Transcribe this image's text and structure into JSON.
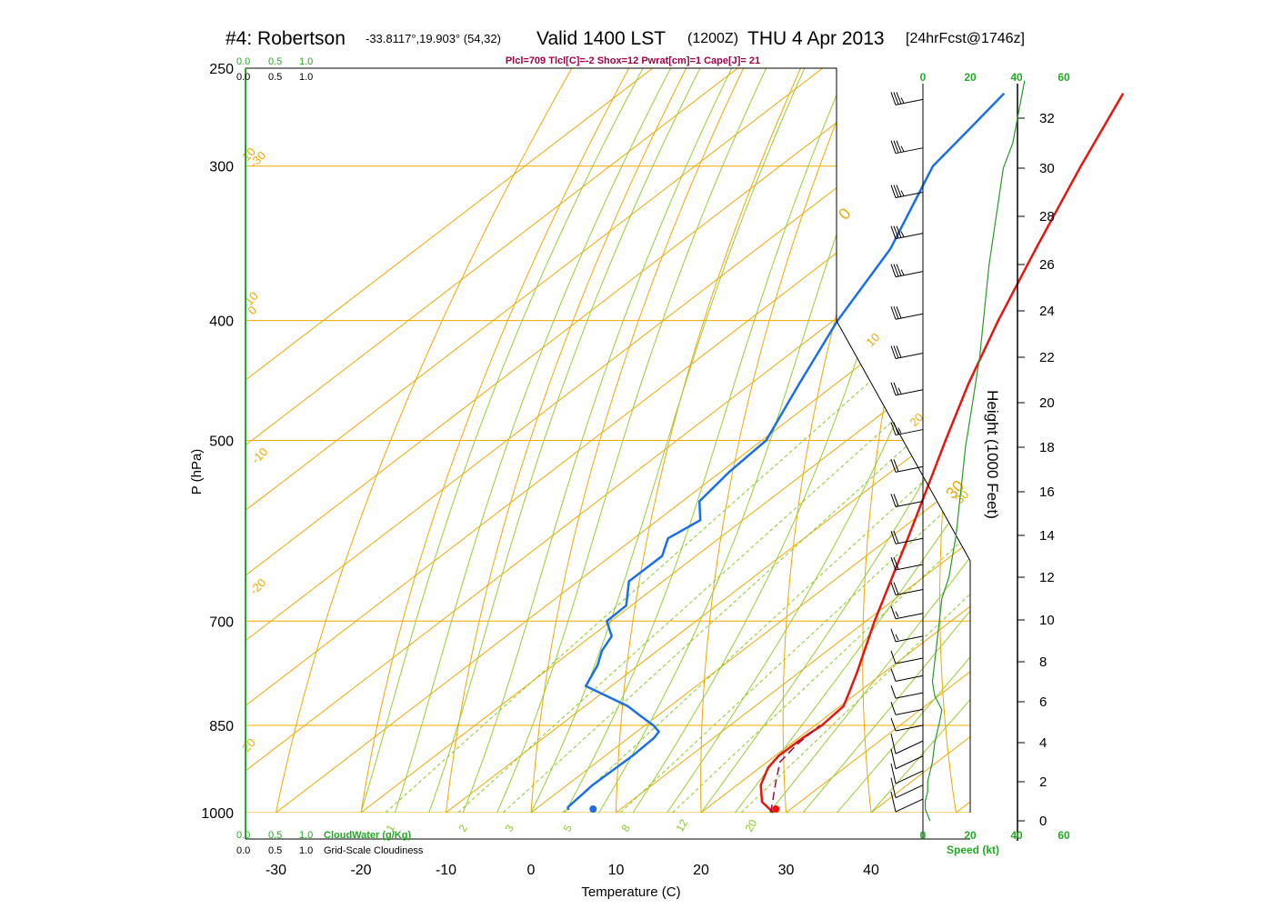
{
  "title": {
    "station": "#4: Robertson",
    "coords": "-33.8117°,19.903° (54,32)",
    "valid": "Valid 1400 LST",
    "utc": "(1200Z)",
    "date": "THU 4 Apr 2013",
    "fcst": "[24hrFcst@1746z]"
  },
  "params_line": "Plcl=709 Tlcl[C]=-2 Shox=12 Pwrat[cm]=1 Cape[J]= 21",
  "colors": {
    "isotherm": "#f0a800",
    "dry_adiabat": "#f0a800",
    "moist_adiabat": "#99cc33",
    "mixing_ratio": "#88cc22",
    "temperature": "#e8150f",
    "dewpoint": "#1a6fe8",
    "parcel": "#9b0f38",
    "cloud_scale": "#22aa22",
    "speed_profile": "#2a9a2a"
  },
  "cloud_scale": {
    "green_ticks": [
      "0.0",
      "0.5",
      "1.0"
    ],
    "black_ticks": [
      "0.0",
      "0.5",
      "1.0"
    ],
    "cloudwater_label": "CloudWater (g/Kg)",
    "cloudiness_label": "Grid-Scale Cloudiness"
  },
  "speed_scale": {
    "ticks": [
      "0",
      "20",
      "40",
      "60"
    ],
    "label": "Speed (kt)"
  },
  "chart_data": {
    "type": "line",
    "subtype": "skew-T log-P sounding",
    "xlabel": "Temperature (C)",
    "ylabel": "P (hPa)",
    "y2label": "Height (1000 Feet)",
    "x_ticks": [
      -30,
      -20,
      -10,
      0,
      10,
      20,
      30,
      40
    ],
    "x_tick_labels": [
      "-30",
      "-20",
      "-10",
      "0",
      "10",
      "20",
      "30",
      "40"
    ],
    "p_ticks": [
      250,
      300,
      400,
      500,
      700,
      850,
      1000
    ],
    "p_tick_labels": [
      "250",
      "300",
      "400",
      "500",
      "700",
      "850",
      "1000"
    ],
    "height_ticks": [
      0,
      2,
      4,
      6,
      8,
      10,
      12,
      14,
      16,
      18,
      20,
      22,
      24,
      26,
      28,
      30,
      32
    ],
    "height_tick_labels": [
      "0",
      "2",
      "4",
      "6",
      "8",
      "10",
      "12",
      "14",
      "16",
      "18",
      "20",
      "22",
      "24",
      "26",
      "28",
      "30",
      "32"
    ],
    "isotherm_labels": [
      "-30",
      "-20",
      "-10",
      "0",
      "10",
      "20",
      "30"
    ],
    "dry_adiabat_labels": [
      "10",
      "0",
      "-10",
      "20",
      "30"
    ],
    "mixing_ratio_labels": [
      "1",
      "2",
      "3",
      "5",
      "8",
      "12",
      "20"
    ],
    "ylim": [
      1000,
      250
    ],
    "xlim_bottom": [
      -33,
      46
    ],
    "series": [
      {
        "name": "Temperature",
        "points": [
          [
            1000,
            28.5
          ],
          [
            980,
            25.5
          ],
          [
            950,
            22.8
          ],
          [
            920,
            21.0
          ],
          [
            900,
            20.4
          ],
          [
            870,
            20.5
          ],
          [
            850,
            20.8
          ],
          [
            820,
            20.4
          ],
          [
            800,
            19.0
          ],
          [
            770,
            16.8
          ],
          [
            700,
            11.0
          ],
          [
            600,
            2.2
          ],
          [
            500,
            -8.4
          ],
          [
            450,
            -14.4
          ],
          [
            400,
            -20.6
          ],
          [
            350,
            -27.2
          ],
          [
            300,
            -34.6
          ],
          [
            262,
            -40.8
          ]
        ]
      },
      {
        "name": "Dewpoint",
        "points": [
          [
            995,
            4.0
          ],
          [
            990,
            3.5
          ],
          [
            950,
            3.0
          ],
          [
            900,
            3.2
          ],
          [
            870,
            3.0
          ],
          [
            860,
            2.6
          ],
          [
            850,
            1.0
          ],
          [
            835,
            -2.0
          ],
          [
            820,
            -5.0
          ],
          [
            790,
            -13.0
          ],
          [
            760,
            -14.8
          ],
          [
            740,
            -16.5
          ],
          [
            720,
            -17.6
          ],
          [
            700,
            -20.5
          ],
          [
            680,
            -20.6
          ],
          [
            650,
            -24.0
          ],
          [
            620,
            -24.0
          ],
          [
            600,
            -26.0
          ],
          [
            580,
            -25.0
          ],
          [
            560,
            -28.0
          ],
          [
            530,
            -29.0
          ],
          [
            500,
            -29.5
          ],
          [
            450,
            -34.3
          ],
          [
            400,
            -39.5
          ],
          [
            350,
            -44.3
          ],
          [
            300,
            -52.0
          ],
          [
            280,
            -53.4
          ],
          [
            262,
            -54.8
          ]
        ]
      },
      {
        "name": "Parcel",
        "points": [
          [
            1000,
            28.2
          ],
          [
            950,
            24.5
          ],
          [
            910,
            21.5
          ],
          [
            880,
            20.8
          ],
          [
            850,
            20.6
          ]
        ]
      }
    ],
    "surface_points": {
      "temperature": 28.8,
      "dewpoint": 7.3
    },
    "wind_barbs": [
      {
        "p": 265,
        "speed_kt": 35
      },
      {
        "p": 290,
        "speed_kt": 35
      },
      {
        "p": 315,
        "speed_kt": 35
      },
      {
        "p": 340,
        "speed_kt": 35
      },
      {
        "p": 365,
        "speed_kt": 35
      },
      {
        "p": 395,
        "speed_kt": 30
      },
      {
        "p": 425,
        "speed_kt": 30
      },
      {
        "p": 455,
        "speed_kt": 25
      },
      {
        "p": 490,
        "speed_kt": 25
      },
      {
        "p": 525,
        "speed_kt": 20
      },
      {
        "p": 560,
        "speed_kt": 20
      },
      {
        "p": 600,
        "speed_kt": 20
      },
      {
        "p": 630,
        "speed_kt": 20
      },
      {
        "p": 660,
        "speed_kt": 20
      },
      {
        "p": 690,
        "speed_kt": 15
      },
      {
        "p": 720,
        "speed_kt": 15
      },
      {
        "p": 750,
        "speed_kt": 10
      },
      {
        "p": 775,
        "speed_kt": 10
      },
      {
        "p": 800,
        "speed_kt": 10
      },
      {
        "p": 825,
        "speed_kt": 10
      },
      {
        "p": 850,
        "speed_kt": 10
      },
      {
        "p": 875,
        "speed_kt": 10
      },
      {
        "p": 900,
        "speed_kt": 10
      },
      {
        "p": 925,
        "speed_kt": 10
      },
      {
        "p": 950,
        "speed_kt": 10
      },
      {
        "p": 975,
        "speed_kt": 10
      }
    ],
    "speed_profile": [
      [
        0,
        3
      ],
      [
        0.3,
        2
      ],
      [
        0.6,
        1
      ],
      [
        1.0,
        1
      ],
      [
        1.5,
        2
      ],
      [
        2.0,
        2
      ],
      [
        3.0,
        4
      ],
      [
        4.0,
        5
      ],
      [
        5.0,
        7
      ],
      [
        5.6,
        8
      ],
      [
        6.3,
        5
      ],
      [
        7.0,
        4
      ],
      [
        8.0,
        5
      ],
      [
        9.0,
        6
      ],
      [
        10.0,
        7
      ],
      [
        11.0,
        8
      ],
      [
        12.0,
        11
      ],
      [
        14.0,
        14
      ],
      [
        16.0,
        16
      ],
      [
        18.0,
        18
      ],
      [
        20.0,
        21
      ],
      [
        22.0,
        24
      ],
      [
        24.0,
        26
      ],
      [
        26.0,
        28
      ],
      [
        28.0,
        31
      ],
      [
        30.0,
        34
      ],
      [
        31.0,
        38
      ],
      [
        32.0,
        40
      ],
      [
        33.5,
        43
      ]
    ]
  }
}
